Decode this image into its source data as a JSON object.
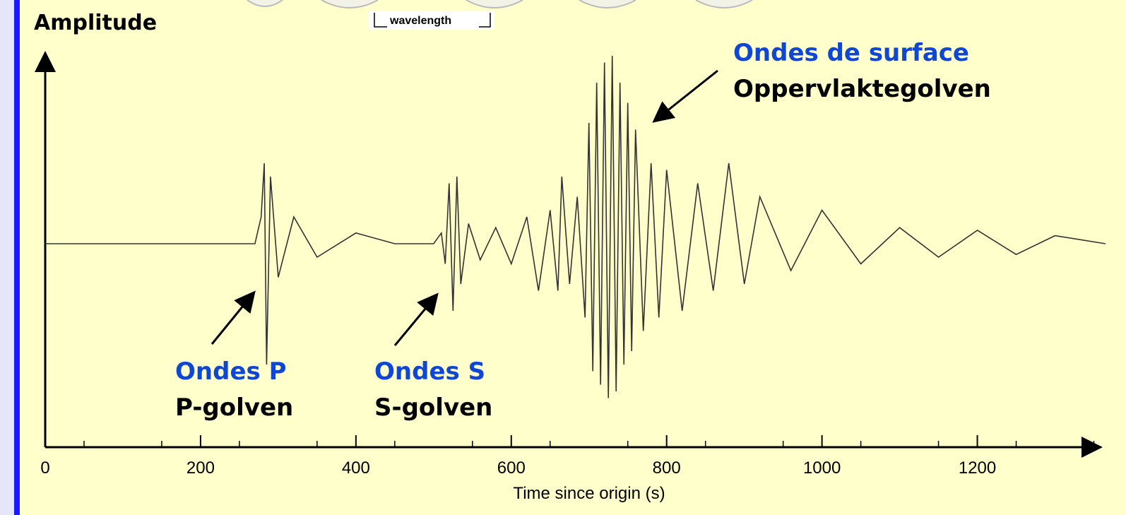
{
  "colors": {
    "background": "#ffffcc",
    "accent_blue": "#1046d6",
    "side_stripe": "#1a1aff",
    "side_panel": "#e6e6fa",
    "trace": "#333333"
  },
  "inset": {
    "label": "wavelength"
  },
  "chart_data": {
    "type": "line",
    "ylabel": "Amplitude",
    "xlabel": "Time since origin (s)",
    "xlim": [
      0,
      1365
    ],
    "ylim": [
      -1,
      1
    ],
    "x_ticks": [
      0,
      200,
      400,
      600,
      800,
      1000,
      1200
    ],
    "x_tick_labels": [
      "0",
      "200",
      "400",
      "600",
      "800",
      "1000",
      "1200"
    ],
    "grid": false,
    "series": [
      {
        "x": [
          0,
          270,
          278,
          282,
          285,
          290,
          300,
          320,
          350,
          400,
          450,
          500,
          510,
          515,
          520,
          525,
          530,
          535,
          545,
          560,
          580,
          600,
          620,
          635,
          650,
          660,
          665,
          675,
          685,
          695,
          700,
          705,
          710,
          715,
          720,
          725,
          730,
          735,
          740,
          745,
          750,
          755,
          760,
          770,
          780,
          790,
          800,
          820,
          840,
          860,
          880,
          900,
          920,
          960,
          1000,
          1050,
          1100,
          1150,
          1200,
          1250,
          1300,
          1365
        ],
        "y": [
          0.0,
          0.0,
          0.2,
          0.6,
          -0.9,
          0.5,
          -0.25,
          0.2,
          -0.1,
          0.08,
          0.0,
          0.0,
          0.08,
          -0.15,
          0.45,
          -0.5,
          0.5,
          -0.3,
          0.15,
          -0.12,
          0.12,
          -0.15,
          0.2,
          -0.35,
          0.25,
          -0.35,
          0.5,
          -0.3,
          0.35,
          -0.55,
          0.9,
          -0.95,
          1.2,
          -1.05,
          1.35,
          -1.15,
          1.4,
          -1.1,
          1.2,
          -0.9,
          1.05,
          -0.8,
          0.85,
          -0.65,
          0.6,
          -0.55,
          0.55,
          -0.5,
          0.45,
          -0.35,
          0.6,
          -0.3,
          0.35,
          -0.2,
          0.25,
          -0.15,
          0.12,
          -0.1,
          0.1,
          -0.08,
          0.06,
          0.0
        ]
      }
    ],
    "annotations": [
      {
        "id": "p",
        "fr": "Ondes P",
        "nl": "P-golven",
        "target_x": 285
      },
      {
        "id": "s",
        "fr": "Ondes S",
        "nl": "S-golven",
        "target_x": 515
      },
      {
        "id": "surface",
        "fr": "Ondes de surface",
        "nl": "Oppervlaktegolven",
        "target_x": 780
      }
    ]
  }
}
